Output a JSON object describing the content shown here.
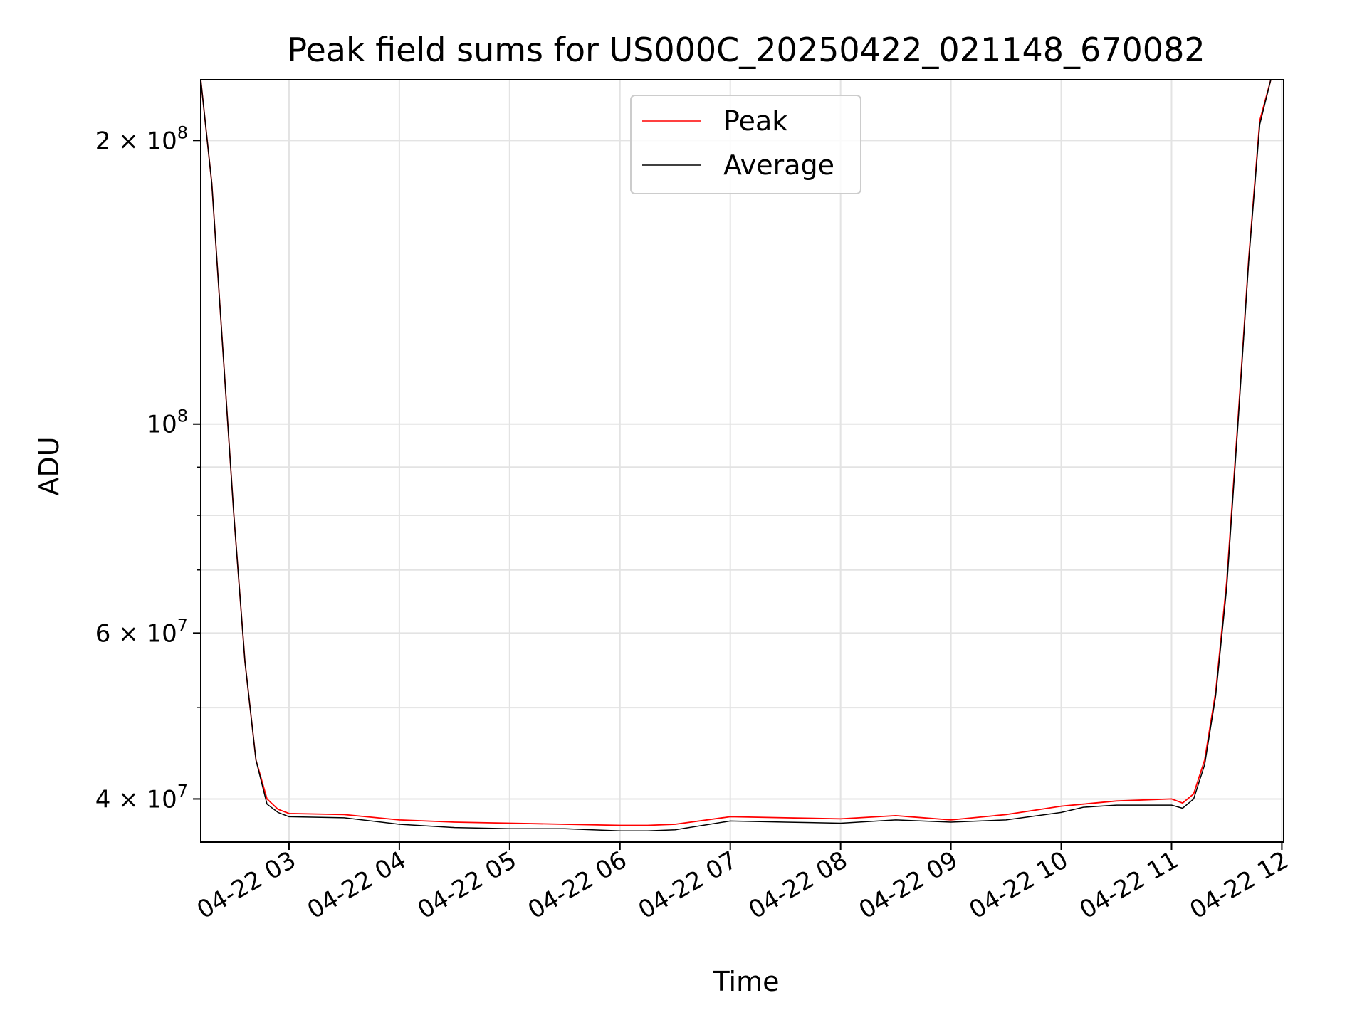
{
  "chart_data": {
    "type": "line",
    "title": "Peak field sums for US000C_20250422_021148_670082",
    "xlabel": "Time",
    "ylabel": "ADU",
    "yscale": "log",
    "ylim": [
      36000000,
      232000000
    ],
    "xlim": [
      "2025-04-22 02:12",
      "2025-04-22 12:01"
    ],
    "grid": true,
    "legend_position": "upper center",
    "x_ticks": [
      "04-22 03",
      "04-22 04",
      "04-22 05",
      "04-22 06",
      "04-22 07",
      "04-22 08",
      "04-22 09",
      "04-22 10",
      "04-22 11",
      "04-22 12"
    ],
    "y_ticks": [
      {
        "value": 40000000,
        "mantissa": "4",
        "exp": "7"
      },
      {
        "value": 60000000,
        "mantissa": "6",
        "exp": "7"
      },
      {
        "value": 100000000,
        "mantissa": "",
        "exp": "8"
      },
      {
        "value": 200000000,
        "mantissa": "2",
        "exp": "8"
      }
    ],
    "y_minor_ticks": [
      50000000,
      70000000,
      80000000,
      90000000
    ],
    "x": [
      "2025-04-22 02:12",
      "2025-04-22 02:18",
      "2025-04-22 02:24",
      "2025-04-22 02:30",
      "2025-04-22 02:36",
      "2025-04-22 02:42",
      "2025-04-22 02:48",
      "2025-04-22 02:54",
      "2025-04-22 03:00",
      "2025-04-22 03:30",
      "2025-04-22 04:00",
      "2025-04-22 04:30",
      "2025-04-22 05:00",
      "2025-04-22 05:30",
      "2025-04-22 06:00",
      "2025-04-22 06:15",
      "2025-04-22 06:30",
      "2025-04-22 07:00",
      "2025-04-22 07:30",
      "2025-04-22 08:00",
      "2025-04-22 08:30",
      "2025-04-22 09:00",
      "2025-04-22 09:30",
      "2025-04-22 10:00",
      "2025-04-22 10:12",
      "2025-04-22 10:30",
      "2025-04-22 11:00",
      "2025-04-22 11:06",
      "2025-04-22 11:12",
      "2025-04-22 11:18",
      "2025-04-22 11:24",
      "2025-04-22 11:30",
      "2025-04-22 11:36",
      "2025-04-22 11:42",
      "2025-04-22 11:48",
      "2025-04-22 11:54"
    ],
    "series": [
      {
        "name": "Peak",
        "color": "#ff0000",
        "values": [
          232000000,
          180000000,
          120000000,
          80000000,
          56000000,
          44000000,
          40000000,
          39000000,
          38600000,
          38500000,
          38000000,
          37800000,
          37700000,
          37600000,
          37500000,
          37500000,
          37600000,
          38300000,
          38200000,
          38100000,
          38400000,
          38000000,
          38500000,
          39300000,
          39500000,
          39800000,
          40000000,
          39600000,
          40500000,
          44000000,
          52000000,
          68000000,
          100000000,
          150000000,
          210000000,
          232000000
        ]
      },
      {
        "name": "Average",
        "color": "#000000",
        "values": [
          232000000,
          180000000,
          120000000,
          80000000,
          56000000,
          44000000,
          39500000,
          38700000,
          38300000,
          38200000,
          37600000,
          37300000,
          37200000,
          37200000,
          37000000,
          37000000,
          37100000,
          37900000,
          37800000,
          37700000,
          38000000,
          37800000,
          38000000,
          38700000,
          39200000,
          39400000,
          39400000,
          39100000,
          40000000,
          43500000,
          51500000,
          67000000,
          99000000,
          149000000,
          208000000,
          232000000
        ]
      }
    ]
  }
}
